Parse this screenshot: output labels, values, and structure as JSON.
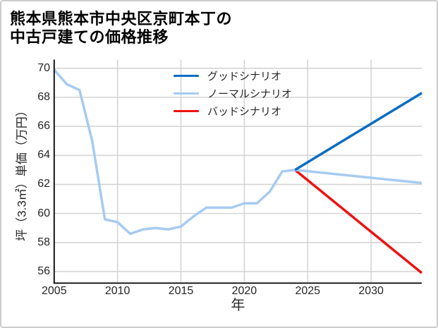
{
  "window": {
    "background_color": "#ffffff",
    "border_color": "#cdcdcd"
  },
  "title": {
    "line1": "熊本県熊本市中央区京町本丁の",
    "line2": "中古戸建ての価格推移",
    "full": "熊本県熊本市中央区京町本丁の中古戸建ての価格推移",
    "color": "#000000"
  },
  "chart_data": {
    "type": "line",
    "title": "熊本県熊本市中央区京町本丁の中古戸建ての価格推移",
    "xlabel": "年",
    "ylabel": "坪（3.3㎡）単価（万円）",
    "xlim": [
      2005,
      2034
    ],
    "ylim": [
      55.2,
      70.6
    ],
    "xticks": [
      2005,
      2010,
      2015,
      2020,
      2025,
      2030
    ],
    "yticks": [
      56,
      58,
      60,
      62,
      64,
      66,
      68,
      70
    ],
    "grid": true,
    "grid_color": "#d4d4d4",
    "spine_color": "#000000",
    "tick_label_color": "#262626",
    "legend_position": "upper center-left, no frame",
    "series": [
      {
        "name": "グッドシナリオ",
        "color": "#0b6dc2",
        "x": [
          2024,
          2034
        ],
        "y": [
          63.0,
          68.3
        ]
      },
      {
        "name": "ノーマルシナリオ",
        "color": "#a6cbf2",
        "x": [
          2005,
          2006,
          2007,
          2008,
          2009,
          2010,
          2011,
          2012,
          2013,
          2014,
          2015,
          2016,
          2017,
          2018,
          2019,
          2020,
          2021,
          2022,
          2023,
          2024,
          2034
        ],
        "y": [
          69.9,
          68.9,
          68.5,
          65.0,
          59.6,
          59.4,
          58.6,
          58.9,
          59.0,
          58.9,
          59.1,
          59.8,
          60.4,
          60.4,
          60.4,
          60.7,
          60.7,
          61.5,
          62.9,
          63.0,
          62.1
        ]
      },
      {
        "name": "バッドシナリオ",
        "color": "#ee1111",
        "x": [
          2024,
          2034
        ],
        "y": [
          63.0,
          55.9
        ]
      }
    ]
  }
}
